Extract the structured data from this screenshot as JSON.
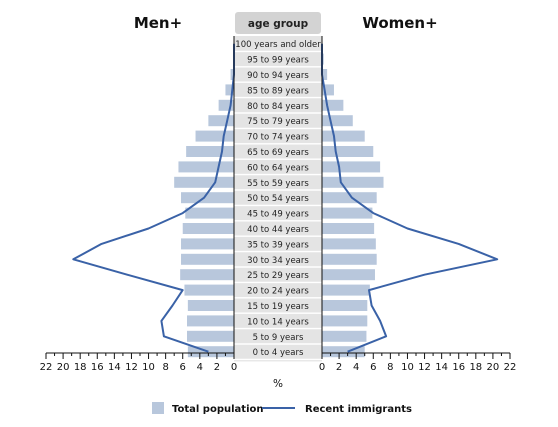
{
  "chart_data": {
    "type": "population-pyramid",
    "left_header": "Men+",
    "right_header": "Women+",
    "center_header": "age group",
    "axis_label": "%",
    "age_groups": [
      "100 years and older",
      "95 to 99 years",
      "90 to 94 years",
      "85 to 89 years",
      "80 to 84 years",
      "75 to 79 years",
      "70 to 74 years",
      "65 to 69 years",
      "60 to 64 years",
      "55 to 59 years",
      "50 to 54 years",
      "45 to 49 years",
      "40 to 44 years",
      "35 to 39 years",
      "30 to 34 years",
      "25 to 29 years",
      "20 to 24 years",
      "15 to 19 years",
      "10 to 14 years",
      "5 to 9 years",
      "0 to 4 years"
    ],
    "series": [
      {
        "name": "Total population",
        "men": [
          0.0,
          0.1,
          0.4,
          1.0,
          1.8,
          3.0,
          4.5,
          5.6,
          6.5,
          7.0,
          6.2,
          5.7,
          6.0,
          6.2,
          6.2,
          6.3,
          5.8,
          5.4,
          5.5,
          5.5,
          5.4
        ],
        "women": [
          0.0,
          0.2,
          0.6,
          1.4,
          2.5,
          3.6,
          5.0,
          6.0,
          6.8,
          7.2,
          6.4,
          5.9,
          6.1,
          6.3,
          6.4,
          6.2,
          5.6,
          5.3,
          5.3,
          5.2,
          5.0
        ]
      },
      {
        "name": "Recent immigrants",
        "men": [
          0.0,
          0.0,
          0.0,
          0.2,
          0.4,
          0.8,
          1.2,
          1.4,
          1.8,
          2.2,
          3.5,
          6.0,
          10.0,
          15.5,
          18.8,
          12.5,
          6.0,
          7.2,
          8.5,
          8.2,
          3.0
        ],
        "women": [
          0.0,
          0.0,
          0.0,
          0.3,
          0.6,
          1.0,
          1.4,
          1.6,
          2.0,
          2.2,
          3.5,
          6.0,
          10.0,
          16.0,
          20.5,
          12.0,
          5.5,
          5.8,
          6.8,
          7.5,
          3.0
        ]
      }
    ],
    "ticks": [
      0,
      2,
      4,
      6,
      8,
      10,
      12,
      14,
      16,
      18,
      20,
      22
    ],
    "xlim": [
      0,
      22
    ],
    "colors": {
      "bar": "#b8c7dc",
      "line": "#3a62a7",
      "center_box": "#d3d3d3"
    }
  }
}
